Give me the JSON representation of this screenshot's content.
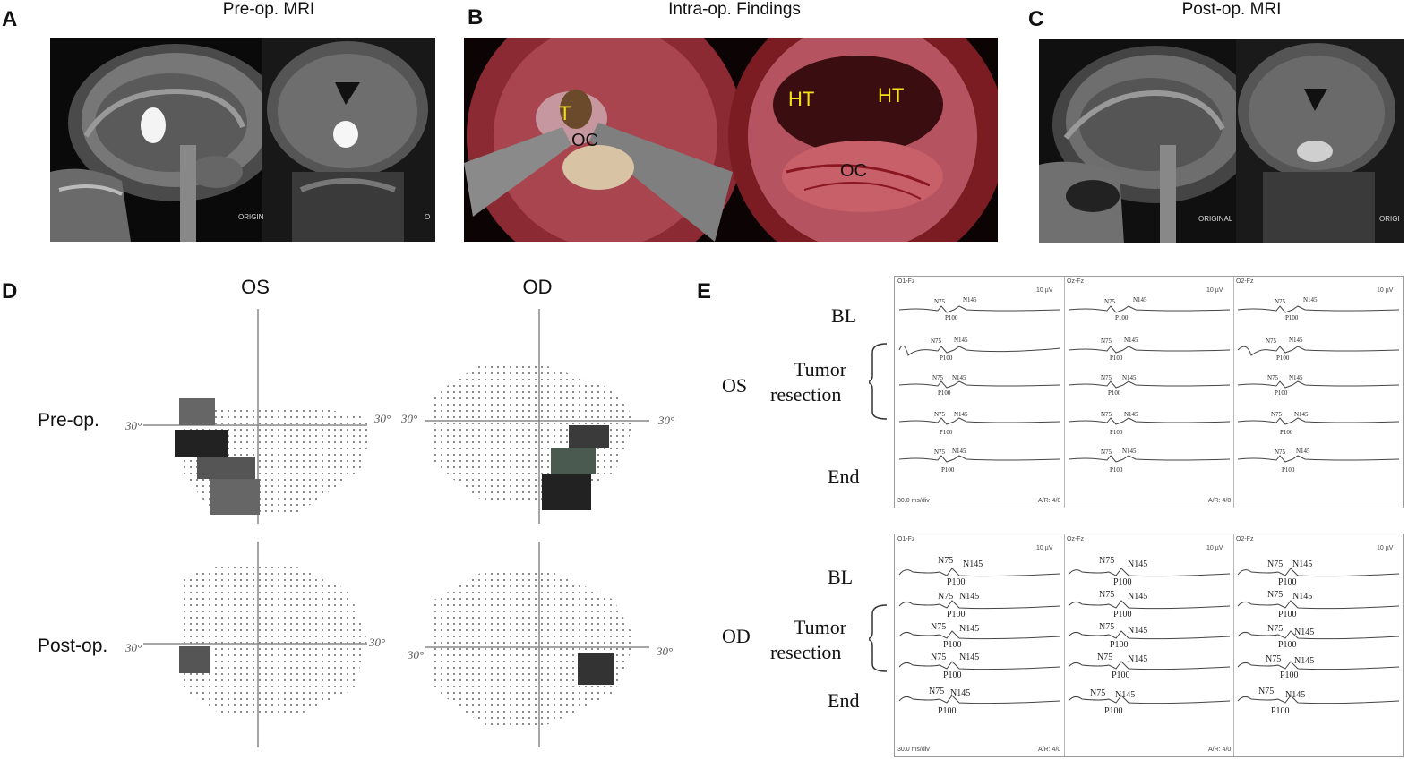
{
  "panels": {
    "A": {
      "letter": "A",
      "title": "Pre-op. MRI",
      "watermark": "ORIGIN",
      "watermark2": "O"
    },
    "B": {
      "letter": "B",
      "title": "Intra-op. Findings",
      "labels": {
        "t": "T",
        "oc1": "OC",
        "ht1": "HT",
        "ht2": "HT",
        "oc2": "OC"
      }
    },
    "C": {
      "letter": "C",
      "title": "Post-op. MRI",
      "watermark": "ORIGINAL",
      "watermark2": "ORIGI"
    },
    "D": {
      "letter": "D",
      "os": "OS",
      "od": "OD",
      "pre": "Pre-op.",
      "post": "Post-op.",
      "deg": "30°"
    },
    "E": {
      "letter": "E",
      "top": {
        "eye": "OS",
        "bl": "BL",
        "tumor": "Tumor",
        "resection": "resection",
        "end": "End"
      },
      "bottom": {
        "eye": "OD",
        "bl": "BL",
        "tumor": "Tumor",
        "resection": "resection",
        "end": "End"
      },
      "channels": [
        "O1-Fz",
        "Oz-Fz",
        "O2-Fz"
      ],
      "scale": "10 µV",
      "timebase": "30.0 ms/div",
      "ar": "A/R: 4/0",
      "peaks": {
        "n75": "N75",
        "n145": "N145",
        "p100": "P100"
      }
    }
  }
}
